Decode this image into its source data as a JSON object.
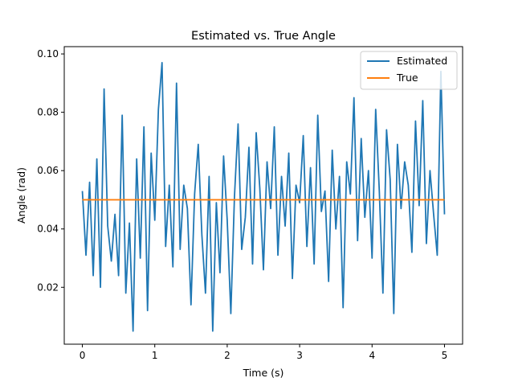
{
  "chart_data": {
    "type": "line",
    "title": "Estimated vs. True Angle",
    "xlabel": "Time (s)",
    "ylabel": "Angle (rad)",
    "xlim": [
      -0.25,
      5.25
    ],
    "ylim": [
      0.0005,
      0.1025
    ],
    "xticks": [
      0,
      1,
      2,
      3,
      4,
      5
    ],
    "xtick_labels": [
      "0",
      "1",
      "2",
      "3",
      "4",
      "5"
    ],
    "yticks": [
      0.02,
      0.04,
      0.06,
      0.08,
      0.1
    ],
    "ytick_labels": [
      "0.02",
      "0.04",
      "0.06",
      "0.08",
      "0.10"
    ],
    "grid": false,
    "legend": {
      "position": "top-right",
      "entries": [
        "Estimated",
        "True"
      ]
    },
    "series": [
      {
        "name": "Estimated",
        "color": "#1f77b4",
        "x": [
          0,
          0.05,
          0.1,
          0.15,
          0.2,
          0.25,
          0.3,
          0.35,
          0.4,
          0.45,
          0.5,
          0.55,
          0.6,
          0.65,
          0.7,
          0.75,
          0.8,
          0.85,
          0.9,
          0.95,
          1,
          1.05,
          1.1,
          1.15,
          1.2,
          1.25,
          1.3,
          1.35,
          1.4,
          1.45,
          1.5,
          1.55,
          1.6,
          1.65,
          1.7,
          1.75,
          1.8,
          1.85,
          1.9,
          1.95,
          2,
          2.05,
          2.1,
          2.15,
          2.2,
          2.25,
          2.3,
          2.35,
          2.4,
          2.45,
          2.5,
          2.55,
          2.6,
          2.65,
          2.7,
          2.75,
          2.8,
          2.85,
          2.9,
          2.95,
          3,
          3.05,
          3.1,
          3.15,
          3.2,
          3.25,
          3.3,
          3.35,
          3.4,
          3.45,
          3.5,
          3.55,
          3.6,
          3.65,
          3.7,
          3.75,
          3.8,
          3.85,
          3.9,
          3.95,
          4,
          4.05,
          4.1,
          4.15,
          4.2,
          4.25,
          4.3,
          4.35,
          4.4,
          4.45,
          4.5,
          4.55,
          4.6,
          4.65,
          4.7,
          4.75,
          4.8,
          4.85,
          4.9,
          4.95,
          5
        ],
        "y": [
          0.053,
          0.031,
          0.056,
          0.024,
          0.064,
          0.02,
          0.088,
          0.041,
          0.029,
          0.045,
          0.024,
          0.079,
          0.018,
          0.042,
          0.005,
          0.064,
          0.03,
          0.075,
          0.012,
          0.066,
          0.043,
          0.081,
          0.097,
          0.034,
          0.055,
          0.027,
          0.09,
          0.033,
          0.055,
          0.047,
          0.014,
          0.052,
          0.069,
          0.038,
          0.018,
          0.058,
          0.005,
          0.049,
          0.025,
          0.065,
          0.043,
          0.011,
          0.051,
          0.076,
          0.033,
          0.044,
          0.068,
          0.028,
          0.073,
          0.054,
          0.026,
          0.063,
          0.047,
          0.075,
          0.031,
          0.058,
          0.041,
          0.066,
          0.023,
          0.055,
          0.049,
          0.072,
          0.034,
          0.061,
          0.028,
          0.079,
          0.046,
          0.053,
          0.022,
          0.067,
          0.04,
          0.058,
          0.013,
          0.063,
          0.052,
          0.085,
          0.036,
          0.071,
          0.044,
          0.06,
          0.03,
          0.081,
          0.053,
          0.018,
          0.074,
          0.057,
          0.011,
          0.069,
          0.047,
          0.063,
          0.055,
          0.032,
          0.077,
          0.048,
          0.084,
          0.035,
          0.06,
          0.045,
          0.031,
          0.094,
          0.045
        ]
      },
      {
        "name": "True",
        "color": "#ff7f0e",
        "x": [
          0,
          5
        ],
        "y": [
          0.05,
          0.05
        ]
      }
    ]
  }
}
